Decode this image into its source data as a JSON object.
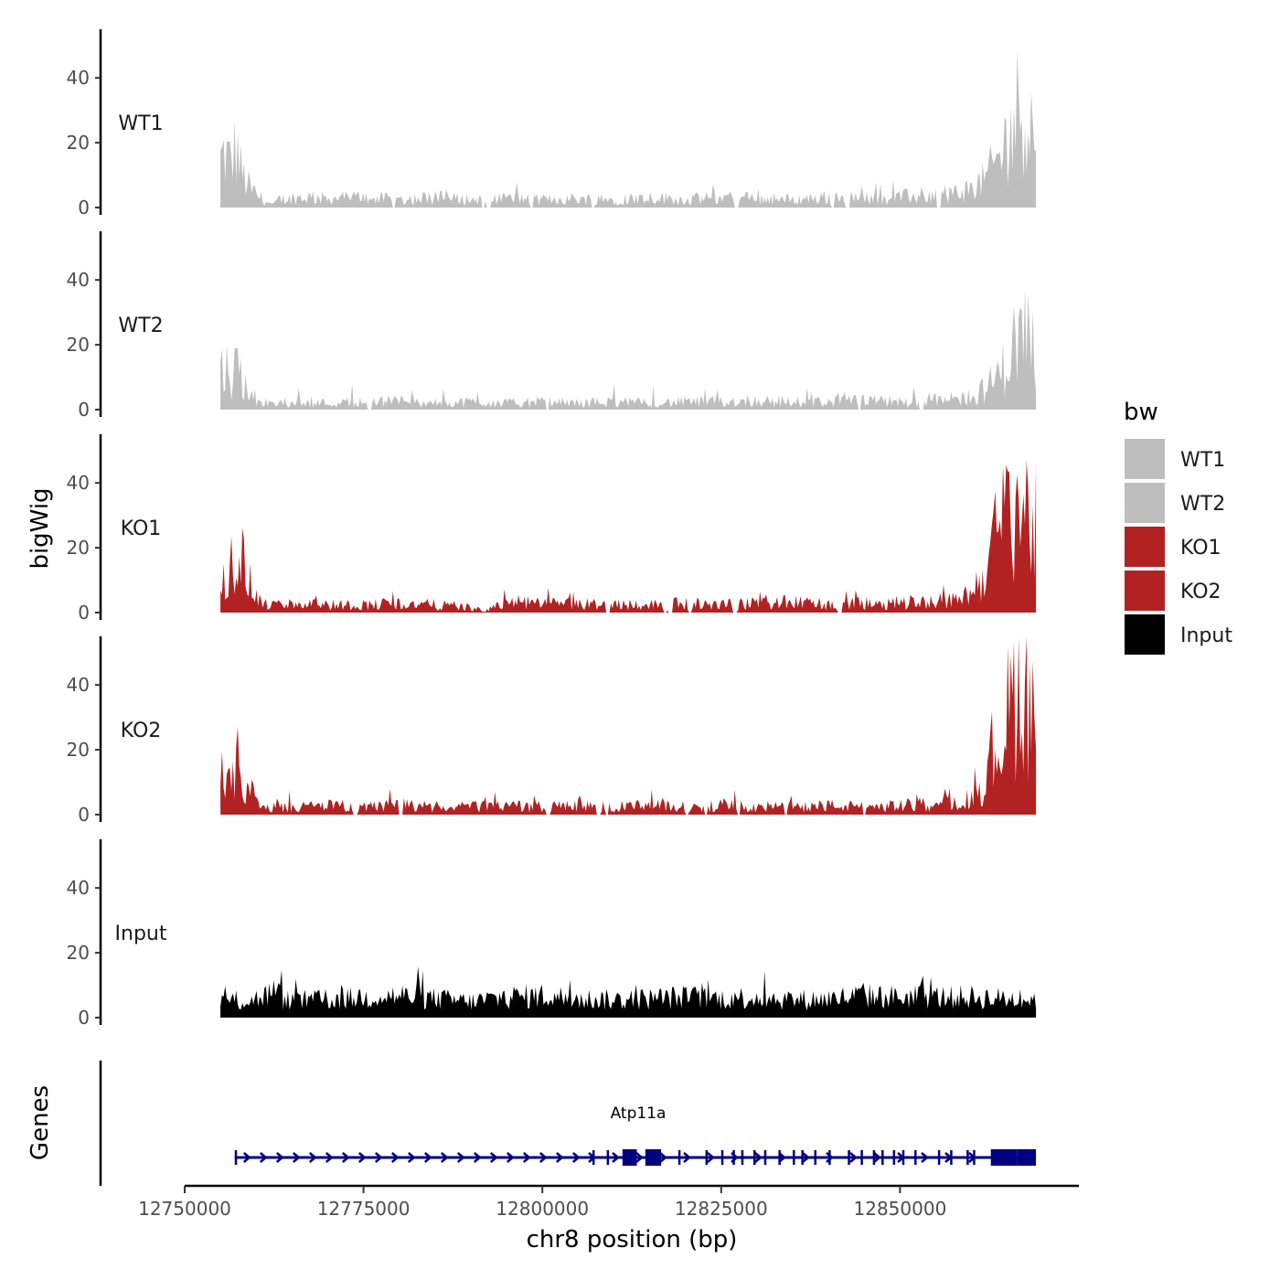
{
  "chart_data": {
    "type": "area",
    "title": "",
    "ylabel": "bigWig",
    "xlabel": "chr8 position (bp)",
    "genes_ylabel": "Genes",
    "xlim": [
      12750000,
      12875000
    ],
    "x_region": [
      12755000,
      12869000
    ],
    "ylim": [
      0,
      55
    ],
    "y_ticks": [
      0,
      20,
      40
    ],
    "x_ticks": [
      12750000,
      12775000,
      12800000,
      12825000,
      12850000
    ],
    "x_tick_labels": [
      "12750000",
      "12775000",
      "12800000",
      "12825000",
      "12850000"
    ],
    "y_tick_labels": [
      "0",
      "20",
      "40"
    ],
    "legend": {
      "title": "bw",
      "position": "right",
      "entries": [
        {
          "label": "WT1",
          "color": "#bebebe"
        },
        {
          "label": "WT2",
          "color": "#bebebe"
        },
        {
          "label": "KO1",
          "color": "#b22222"
        },
        {
          "label": "KO2",
          "color": "#b22222"
        },
        {
          "label": "Input",
          "color": "#000000"
        }
      ]
    },
    "series": [
      {
        "name": "WT1",
        "color": "#bebebe",
        "profile": [
          [
            12755000,
            18
          ],
          [
            12755500,
            21
          ],
          [
            12756500,
            17
          ],
          [
            12757200,
            24
          ],
          [
            12758000,
            13
          ],
          [
            12758800,
            9
          ],
          [
            12759500,
            6
          ],
          [
            12760500,
            4
          ],
          [
            12761500,
            2
          ],
          [
            12762500,
            1
          ],
          [
            12763000,
            3
          ],
          [
            12766000,
            4
          ],
          [
            12770000,
            3.5
          ],
          [
            12775000,
            4
          ],
          [
            12780000,
            3
          ],
          [
            12785000,
            4
          ],
          [
            12790000,
            3
          ],
          [
            12795000,
            3.5
          ],
          [
            12800000,
            3
          ],
          [
            12805000,
            3.5
          ],
          [
            12810000,
            3
          ],
          [
            12815000,
            4
          ],
          [
            12820000,
            3
          ],
          [
            12825000,
            4
          ],
          [
            12830000,
            3.5
          ],
          [
            12835000,
            3
          ],
          [
            12840000,
            4
          ],
          [
            12845000,
            3.5
          ],
          [
            12850000,
            4
          ],
          [
            12855000,
            5
          ],
          [
            12858000,
            6
          ],
          [
            12860000,
            7
          ],
          [
            12862000,
            11
          ],
          [
            12864000,
            20
          ],
          [
            12865500,
            30
          ],
          [
            12866500,
            38
          ],
          [
            12867200,
            42
          ],
          [
            12868000,
            34
          ],
          [
            12869000,
            28
          ]
        ]
      },
      {
        "name": "WT2",
        "color": "#bebebe",
        "profile": [
          [
            12755000,
            15
          ],
          [
            12755700,
            17
          ],
          [
            12756600,
            13
          ],
          [
            12757500,
            18
          ],
          [
            12758300,
            10
          ],
          [
            12759000,
            7
          ],
          [
            12760000,
            4
          ],
          [
            12761000,
            3
          ],
          [
            12762000,
            2
          ],
          [
            12763000,
            2.5
          ],
          [
            12766000,
            3
          ],
          [
            12770000,
            2.5
          ],
          [
            12775000,
            3
          ],
          [
            12780000,
            3.5
          ],
          [
            12785000,
            2.5
          ],
          [
            12790000,
            3
          ],
          [
            12795000,
            2.5
          ],
          [
            12800000,
            3
          ],
          [
            12805000,
            2.5
          ],
          [
            12810000,
            3
          ],
          [
            12815000,
            2.5
          ],
          [
            12820000,
            3
          ],
          [
            12825000,
            3
          ],
          [
            12830000,
            3.5
          ],
          [
            12835000,
            3
          ],
          [
            12840000,
            3
          ],
          [
            12845000,
            3.5
          ],
          [
            12850000,
            3
          ],
          [
            12855000,
            3.5
          ],
          [
            12858000,
            4
          ],
          [
            12860000,
            5
          ],
          [
            12862000,
            8
          ],
          [
            12864000,
            14
          ],
          [
            12865500,
            22
          ],
          [
            12866500,
            28
          ],
          [
            12867300,
            32
          ],
          [
            12868000,
            26
          ],
          [
            12869000,
            22
          ]
        ]
      },
      {
        "name": "KO1",
        "color": "#b22222",
        "profile": [
          [
            12755000,
            22
          ],
          [
            12755600,
            20
          ],
          [
            12756500,
            18
          ],
          [
            12757200,
            25
          ],
          [
            12758000,
            21
          ],
          [
            12759000,
            12
          ],
          [
            12759800,
            7
          ],
          [
            12760500,
            4
          ],
          [
            12761500,
            3
          ],
          [
            12763000,
            3
          ],
          [
            12766000,
            3.5
          ],
          [
            12770000,
            3
          ],
          [
            12775000,
            3
          ],
          [
            12780000,
            3.5
          ],
          [
            12785000,
            3
          ],
          [
            12790000,
            2
          ],
          [
            12792000,
            0.5
          ],
          [
            12793500,
            2.5
          ],
          [
            12796000,
            4
          ],
          [
            12800000,
            3.5
          ],
          [
            12805000,
            3
          ],
          [
            12810000,
            3.5
          ],
          [
            12815000,
            3
          ],
          [
            12820000,
            3.5
          ],
          [
            12825000,
            3
          ],
          [
            12830000,
            3.5
          ],
          [
            12835000,
            4
          ],
          [
            12840000,
            3
          ],
          [
            12845000,
            3.5
          ],
          [
            12850000,
            4
          ],
          [
            12855000,
            4.5
          ],
          [
            12858000,
            5
          ],
          [
            12860000,
            8
          ],
          [
            12861500,
            14
          ],
          [
            12863000,
            26
          ],
          [
            12864500,
            36
          ],
          [
            12865500,
            42
          ],
          [
            12866300,
            44
          ],
          [
            12867000,
            40
          ],
          [
            12868000,
            38
          ],
          [
            12869000,
            33
          ]
        ]
      },
      {
        "name": "KO2",
        "color": "#b22222",
        "profile": [
          [
            12755000,
            13
          ],
          [
            12755600,
            10
          ],
          [
            12756500,
            11
          ],
          [
            12757300,
            21
          ],
          [
            12758000,
            12
          ],
          [
            12759000,
            11
          ],
          [
            12759800,
            6
          ],
          [
            12760500,
            3
          ],
          [
            12761500,
            2.5
          ],
          [
            12763000,
            3
          ],
          [
            12766000,
            3
          ],
          [
            12770000,
            3.5
          ],
          [
            12775000,
            3
          ],
          [
            12780000,
            3.5
          ],
          [
            12785000,
            3
          ],
          [
            12790000,
            3
          ],
          [
            12795000,
            3.5
          ],
          [
            12800000,
            3
          ],
          [
            12805000,
            3.5
          ],
          [
            12810000,
            3
          ],
          [
            12815000,
            3.5
          ],
          [
            12820000,
            3
          ],
          [
            12825000,
            3.5
          ],
          [
            12830000,
            3
          ],
          [
            12835000,
            3
          ],
          [
            12840000,
            3.5
          ],
          [
            12845000,
            3
          ],
          [
            12850000,
            3.5
          ],
          [
            12855000,
            4
          ],
          [
            12858000,
            5
          ],
          [
            12860000,
            7
          ],
          [
            12861500,
            12
          ],
          [
            12863000,
            22
          ],
          [
            12864500,
            34
          ],
          [
            12865500,
            42
          ],
          [
            12866500,
            48
          ],
          [
            12867300,
            52
          ],
          [
            12868000,
            46
          ],
          [
            12869000,
            40
          ]
        ]
      },
      {
        "name": "Input",
        "color": "#000000",
        "profile": [
          [
            12755000,
            6
          ],
          [
            12758000,
            5.5
          ],
          [
            12761000,
            7
          ],
          [
            12762500,
            9
          ],
          [
            12764000,
            6
          ],
          [
            12770000,
            6
          ],
          [
            12775000,
            7
          ],
          [
            12780000,
            7.5
          ],
          [
            12785000,
            6.5
          ],
          [
            12790000,
            5.5
          ],
          [
            12795000,
            7
          ],
          [
            12800000,
            7.5
          ],
          [
            12805000,
            6.5
          ],
          [
            12810000,
            6
          ],
          [
            12815000,
            6.5
          ],
          [
            12820000,
            7
          ],
          [
            12825000,
            6.5
          ],
          [
            12830000,
            7
          ],
          [
            12835000,
            6
          ],
          [
            12840000,
            6.5
          ],
          [
            12845000,
            7.5
          ],
          [
            12850000,
            7
          ],
          [
            12855000,
            7
          ],
          [
            12860000,
            7
          ],
          [
            12865000,
            6.5
          ],
          [
            12869000,
            6.5
          ]
        ]
      }
    ],
    "gene_track": {
      "gene": "Atp11a",
      "color": "#000080",
      "strand": "+",
      "start": 12757000,
      "end": 12869000,
      "exons": [
        [
          12757000,
          12757200
        ],
        [
          12807000,
          12807250
        ],
        [
          12809000,
          12809200
        ],
        [
          12811200,
          12813200
        ],
        [
          12814400,
          12816600
        ],
        [
          12819000,
          12819250
        ],
        [
          12822800,
          12823050
        ],
        [
          12825000,
          12825300
        ],
        [
          12826600,
          12826850
        ],
        [
          12827800,
          12828050
        ],
        [
          12829500,
          12829750
        ],
        [
          12831000,
          12831250
        ],
        [
          12833000,
          12833250
        ],
        [
          12835000,
          12835250
        ],
        [
          12836200,
          12836450
        ],
        [
          12838000,
          12838250
        ],
        [
          12840000,
          12840250
        ],
        [
          12842700,
          12842950
        ],
        [
          12844500,
          12844750
        ],
        [
          12846200,
          12846450
        ],
        [
          12847400,
          12847650
        ],
        [
          12849000,
          12849250
        ],
        [
          12850300,
          12850550
        ],
        [
          12852000,
          12852250
        ],
        [
          12855300,
          12855550
        ],
        [
          12857000,
          12857250
        ],
        [
          12859300,
          12859550
        ],
        [
          12860200,
          12860450
        ],
        [
          12862700,
          12866400
        ],
        [
          12866400,
          12869000
        ]
      ]
    }
  }
}
